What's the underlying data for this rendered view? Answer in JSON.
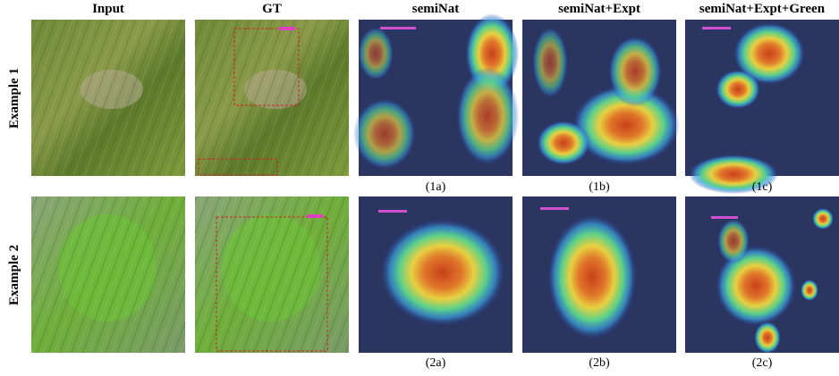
{
  "columns": [
    "Input",
    "GT",
    "semiNat",
    "semiNat+Expt",
    "semiNat+Expt+Green"
  ],
  "rows": [
    {
      "label": "Example 1",
      "captions": [
        "(1a)",
        "(1b)",
        "(1c)"
      ]
    },
    {
      "label": "Example 2",
      "captions": [
        "(2a)",
        "(2b)",
        "(2c)"
      ]
    }
  ]
}
